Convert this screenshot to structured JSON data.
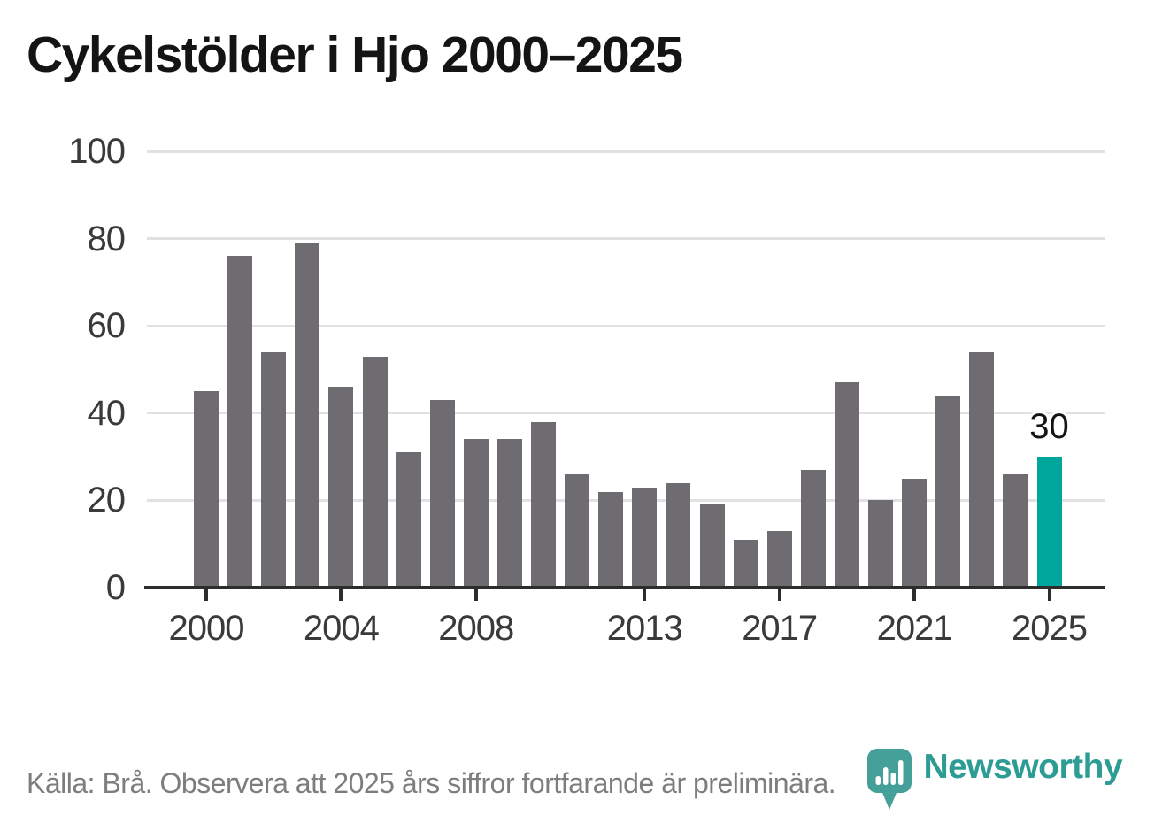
{
  "title": "Cykelstölder i Hjo 2000–2025",
  "footer": {
    "source_note": "Källa: Brå. Observera att 2025 års siffror fortfarande är preliminära."
  },
  "branding": {
    "wordmark": "Newsworthy",
    "logo_icon": "newsworthy-pin-barchart-icon",
    "mark_color": "#44A099",
    "brand_color": "#2D9C94"
  },
  "chart_data": {
    "type": "bar",
    "x": [
      2000,
      2001,
      2002,
      2003,
      2004,
      2005,
      2006,
      2007,
      2008,
      2009,
      2010,
      2011,
      2012,
      2013,
      2014,
      2015,
      2016,
      2017,
      2018,
      2019,
      2020,
      2021,
      2022,
      2023,
      2024,
      2025
    ],
    "values": [
      45,
      76,
      54,
      79,
      46,
      53,
      31,
      43,
      34,
      34,
      38,
      26,
      22,
      23,
      24,
      19,
      11,
      13,
      27,
      47,
      20,
      25,
      44,
      54,
      26,
      30
    ],
    "title": "Cykelstölder i Hjo 2000–2025",
    "xlabel": "",
    "ylabel": "",
    "ylim": [
      0,
      100
    ],
    "yticks": [
      0,
      20,
      40,
      60,
      80,
      100
    ],
    "xticks": [
      2000,
      2004,
      2008,
      2013,
      2017,
      2021,
      2025
    ],
    "grid": true,
    "legend_position": "none",
    "bar_color": "#6F6C71",
    "highlight": {
      "year": 2025,
      "value": 30,
      "value_label": "30",
      "color": "#00A69B"
    },
    "gridline_color": "#E1E1E1",
    "axis_color": "#2D2D2D",
    "tick_label_color": "#3A3A3A"
  }
}
